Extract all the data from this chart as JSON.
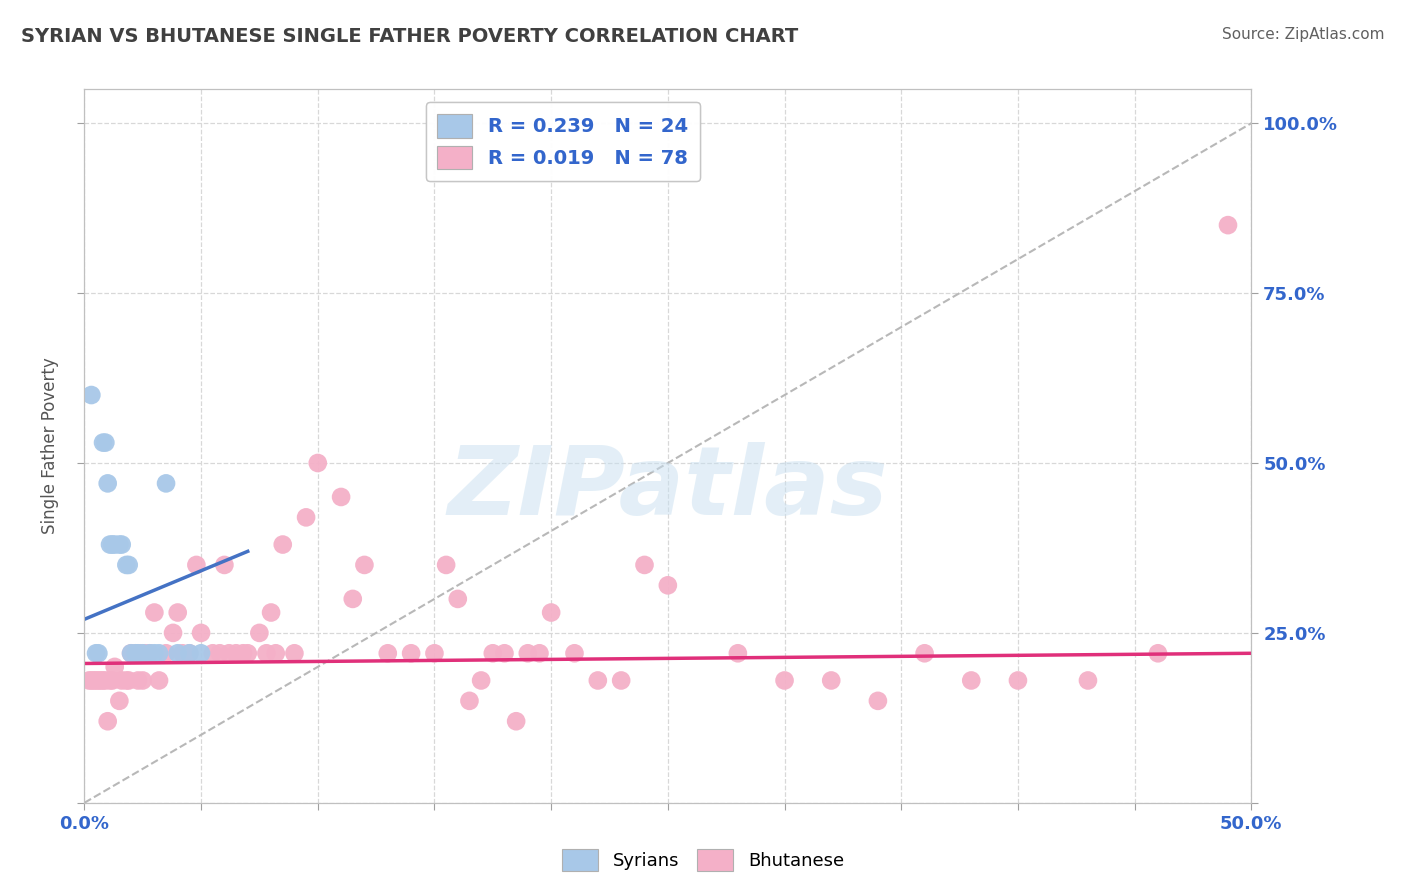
{
  "title": "SYRIAN VS BHUTANESE SINGLE FATHER POVERTY CORRELATION CHART",
  "source": "Source: ZipAtlas.com",
  "ylabel": "Single Father Poverty",
  "watermark": "ZIPatlas",
  "xlim": [
    0.0,
    0.5
  ],
  "ylim": [
    0.0,
    1.05
  ],
  "R_syrian": 0.239,
  "N_syrian": 24,
  "R_bhutanese": 0.019,
  "N_bhutanese": 78,
  "syrian_color": "#a8c8e8",
  "bhutanese_color": "#f4b0c8",
  "syrian_line_color": "#4472c4",
  "bhutanese_line_color": "#e0307a",
  "legend_text_color": "#3366cc",
  "title_color": "#404040",
  "bg_color": "#ffffff",
  "grid_color": "#d8d8d8",
  "syrian_x": [
    0.003,
    0.005,
    0.006,
    0.008,
    0.009,
    0.01,
    0.011,
    0.012,
    0.013,
    0.015,
    0.016,
    0.018,
    0.019,
    0.02,
    0.022,
    0.023,
    0.025,
    0.028,
    0.03,
    0.032,
    0.035,
    0.04,
    0.045,
    0.05
  ],
  "syrian_y": [
    0.6,
    0.22,
    0.22,
    0.53,
    0.53,
    0.47,
    0.38,
    0.38,
    0.38,
    0.38,
    0.38,
    0.35,
    0.35,
    0.22,
    0.22,
    0.22,
    0.22,
    0.22,
    0.22,
    0.22,
    0.47,
    0.22,
    0.22,
    0.22
  ],
  "bhutanese_x": [
    0.002,
    0.003,
    0.004,
    0.005,
    0.006,
    0.007,
    0.008,
    0.009,
    0.01,
    0.011,
    0.012,
    0.013,
    0.015,
    0.016,
    0.018,
    0.019,
    0.02,
    0.022,
    0.023,
    0.024,
    0.025,
    0.026,
    0.028,
    0.03,
    0.032,
    0.035,
    0.038,
    0.04,
    0.042,
    0.045,
    0.048,
    0.05,
    0.055,
    0.058,
    0.06,
    0.062,
    0.065,
    0.068,
    0.07,
    0.075,
    0.078,
    0.08,
    0.082,
    0.085,
    0.09,
    0.095,
    0.1,
    0.11,
    0.115,
    0.12,
    0.13,
    0.14,
    0.15,
    0.155,
    0.16,
    0.165,
    0.17,
    0.175,
    0.18,
    0.185,
    0.19,
    0.195,
    0.2,
    0.21,
    0.22,
    0.23,
    0.24,
    0.25,
    0.28,
    0.3,
    0.32,
    0.34,
    0.36,
    0.38,
    0.4,
    0.43,
    0.46,
    0.49
  ],
  "bhutanese_y": [
    0.18,
    0.18,
    0.18,
    0.18,
    0.18,
    0.18,
    0.18,
    0.18,
    0.12,
    0.18,
    0.18,
    0.2,
    0.15,
    0.18,
    0.18,
    0.18,
    0.22,
    0.22,
    0.18,
    0.22,
    0.18,
    0.22,
    0.22,
    0.28,
    0.18,
    0.22,
    0.25,
    0.28,
    0.22,
    0.22,
    0.35,
    0.25,
    0.22,
    0.22,
    0.35,
    0.22,
    0.22,
    0.22,
    0.22,
    0.25,
    0.22,
    0.28,
    0.22,
    0.38,
    0.22,
    0.42,
    0.5,
    0.45,
    0.3,
    0.35,
    0.22,
    0.22,
    0.22,
    0.35,
    0.3,
    0.15,
    0.18,
    0.22,
    0.22,
    0.12,
    0.22,
    0.22,
    0.28,
    0.22,
    0.18,
    0.18,
    0.35,
    0.32,
    0.22,
    0.18,
    0.18,
    0.15,
    0.22,
    0.18,
    0.18,
    0.18,
    0.22,
    0.85
  ],
  "syrian_trend_x": [
    0.0,
    0.07
  ],
  "syrian_trend_y": [
    0.27,
    0.37
  ],
  "bhutanese_trend_x": [
    0.0,
    0.5
  ],
  "bhutanese_trend_y": [
    0.205,
    0.22
  ]
}
